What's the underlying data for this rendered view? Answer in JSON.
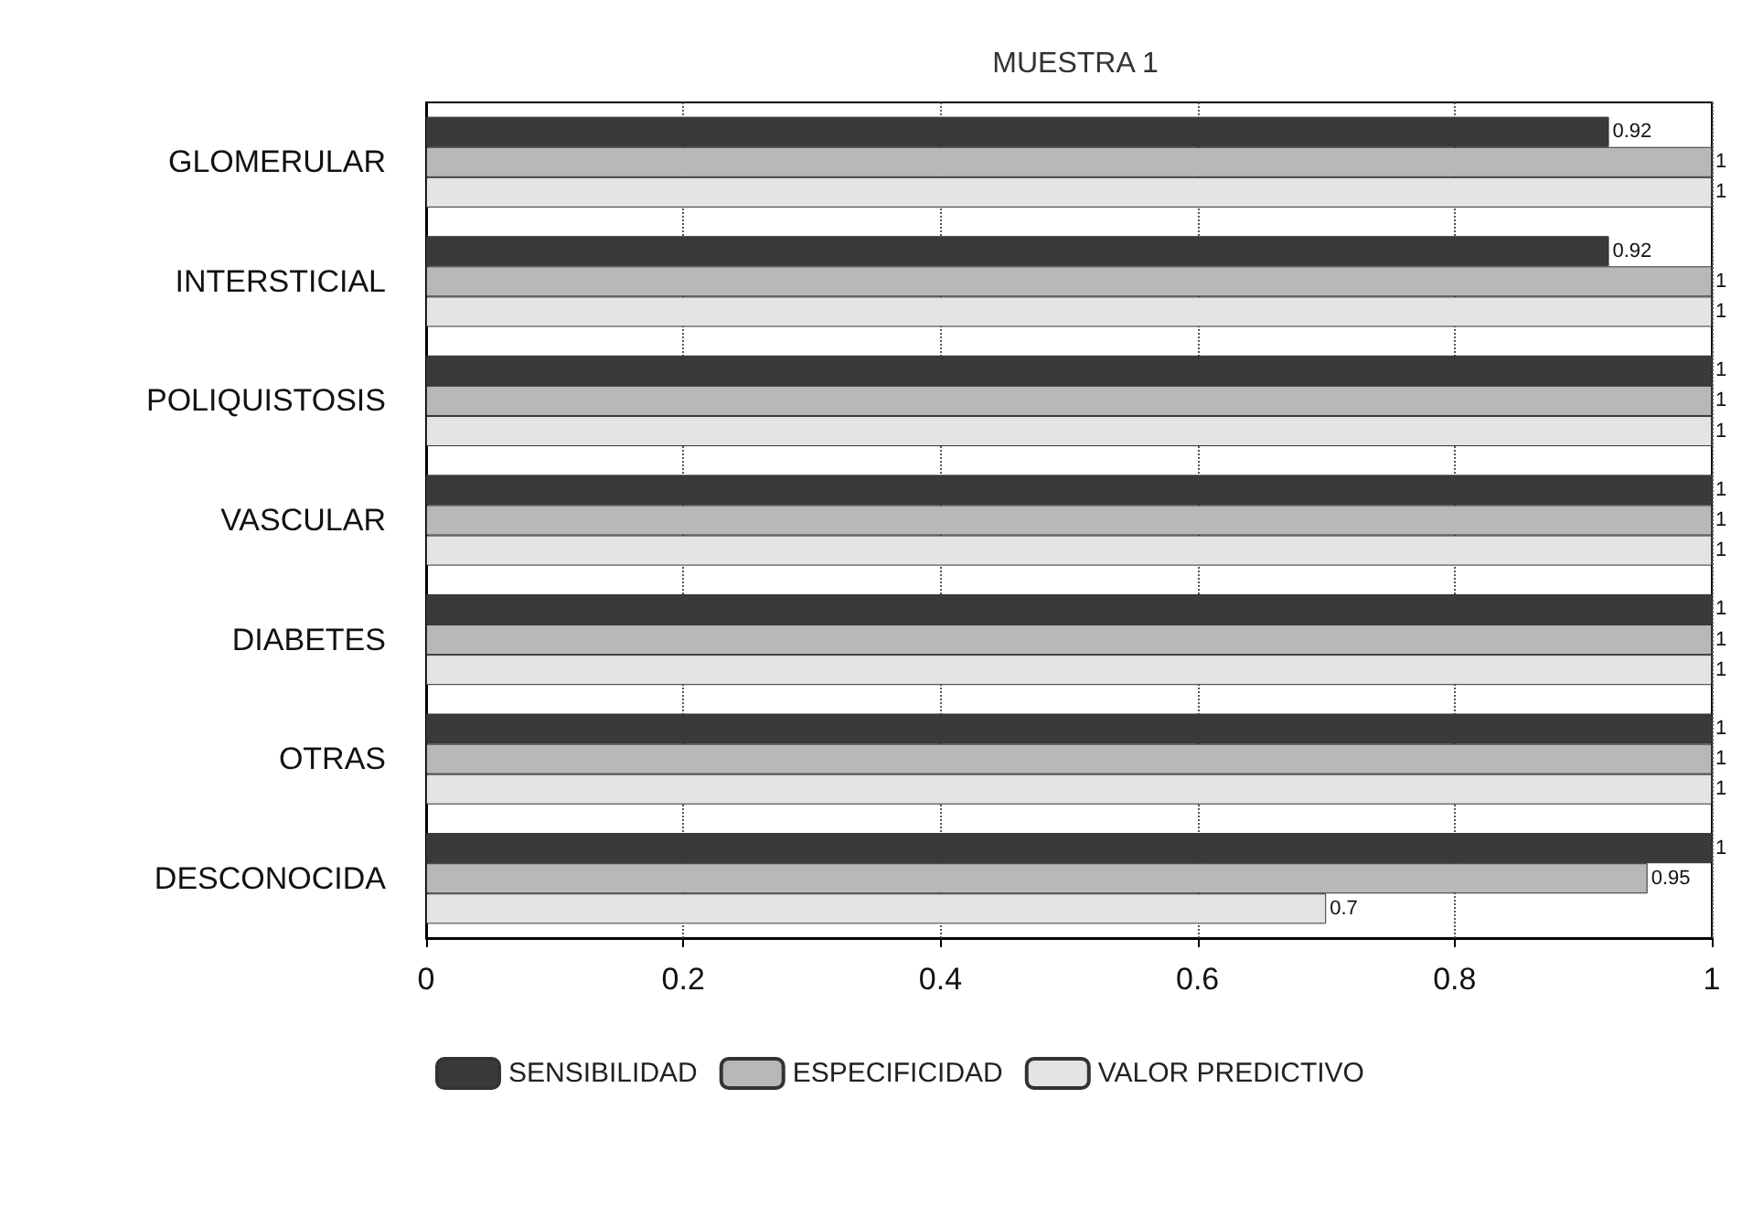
{
  "chart_data": {
    "type": "bar",
    "orientation": "horizontal",
    "title": "MUESTRA 1",
    "categories": [
      "GLOMERULAR",
      "INTERSTICIAL",
      "POLIQUISTOSIS",
      "VASCULAR",
      "DIABETES",
      "OTRAS",
      "DESCONOCIDA"
    ],
    "series": [
      {
        "name": "SENSIBILIDAD",
        "color": "#3a3a3a",
        "values": [
          0.92,
          0.92,
          1,
          1,
          1,
          1,
          1
        ]
      },
      {
        "name": "ESPECIFICIDAD",
        "color": "#b8b8b8",
        "values": [
          1,
          1,
          1,
          1,
          1,
          1,
          0.95
        ]
      },
      {
        "name": "VALOR PREDICTIVO",
        "color": "#e4e4e4",
        "values": [
          1,
          1,
          1,
          1,
          1,
          1,
          0.7
        ]
      }
    ],
    "xlim": [
      0,
      1
    ],
    "xticks": [
      0,
      0.2,
      0.4,
      0.6,
      0.8,
      1
    ],
    "grid": "x",
    "legend": "bottom",
    "data_labels": true
  }
}
